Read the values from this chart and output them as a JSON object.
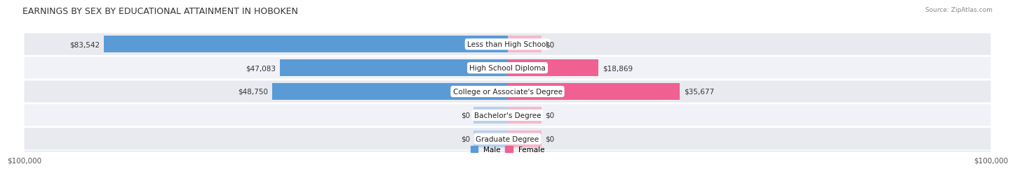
{
  "title": "EARNINGS BY SEX BY EDUCATIONAL ATTAINMENT IN HOBOKEN",
  "source": "Source: ZipAtlas.com",
  "categories": [
    "Less than High School",
    "High School Diploma",
    "College or Associate's Degree",
    "Bachelor's Degree",
    "Graduate Degree"
  ],
  "male_values": [
    83542,
    47083,
    48750,
    0,
    0
  ],
  "female_values": [
    0,
    18869,
    35677,
    0,
    0
  ],
  "male_color_strong": "#5b9bd5",
  "male_color_light": "#b8d0ea",
  "female_color_strong": "#f06090",
  "female_color_light": "#f5b8cc",
  "row_bg_odd": "#e8eaf0",
  "row_bg_even": "#f0f2f7",
  "max_value": 100000,
  "xlabel_left": "$100,000",
  "xlabel_right": "$100,000",
  "legend_male": "Male",
  "legend_female": "Female",
  "title_fontsize": 9,
  "label_fontsize": 7.5,
  "tick_fontsize": 7.5,
  "source_fontsize": 6.5
}
